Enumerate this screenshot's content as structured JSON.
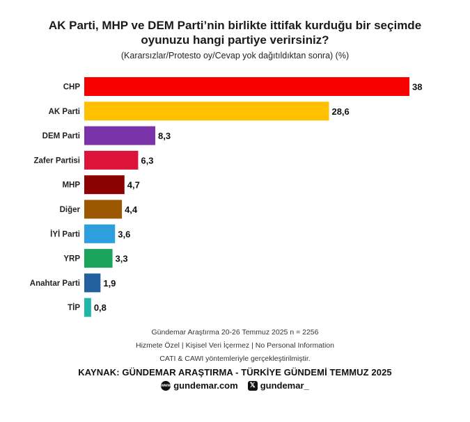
{
  "header": {
    "title_line1": "AK Parti, MHP ve DEM Parti’nin birlikte ittifak kurduğu bir seçimde",
    "title_line2": "oyunuzu hangi partiye verirsiniz?",
    "subtitle": "(Kararsızlar/Protesto oy/Cevap yok dağıtıldıktan sonra) (%)"
  },
  "chart_data": {
    "type": "bar",
    "orientation": "horizontal",
    "categories": [
      "CHP",
      "AK Parti",
      "DEM Parti",
      "Zafer Partisi",
      "MHP",
      "Diğer",
      "İYİ Parti",
      "YRP",
      "Anahtar Parti",
      "TİP"
    ],
    "values": [
      38,
      28.6,
      8.3,
      6.3,
      4.7,
      4.4,
      3.6,
      3.3,
      1.9,
      0.8
    ],
    "value_labels": [
      "38",
      "28,6",
      "8,3",
      "6,3",
      "4,7",
      "4,4",
      "3,6",
      "3,3",
      "1,9",
      "0,8"
    ],
    "colors": [
      "#f90000",
      "#ffc000",
      "#7a33a8",
      "#dc143c",
      "#8b0000",
      "#9c5800",
      "#2e9fdd",
      "#1aa35a",
      "#245f9e",
      "#1fb5a8"
    ],
    "xlim": [
      0,
      38
    ],
    "grid": false,
    "legend": "none"
  },
  "footer": {
    "line1": "Gündemar Araştırma 20-26 Temmuz 2025 n = 2256",
    "line2": "Hizmete Özel | Kişisel Veri İçermez | No Personal Information",
    "line3": "CATI & CAWI yöntemleriyle gerçekleştirilmiştir.",
    "source": "KAYNAK: GÜNDEMAR ARAŞTIRMA - TÜRKİYE GÜNDEMİ TEMMUZ 2025",
    "website": "gundemar.com",
    "handle": "gundemar_",
    "website_icon_text": "www"
  }
}
